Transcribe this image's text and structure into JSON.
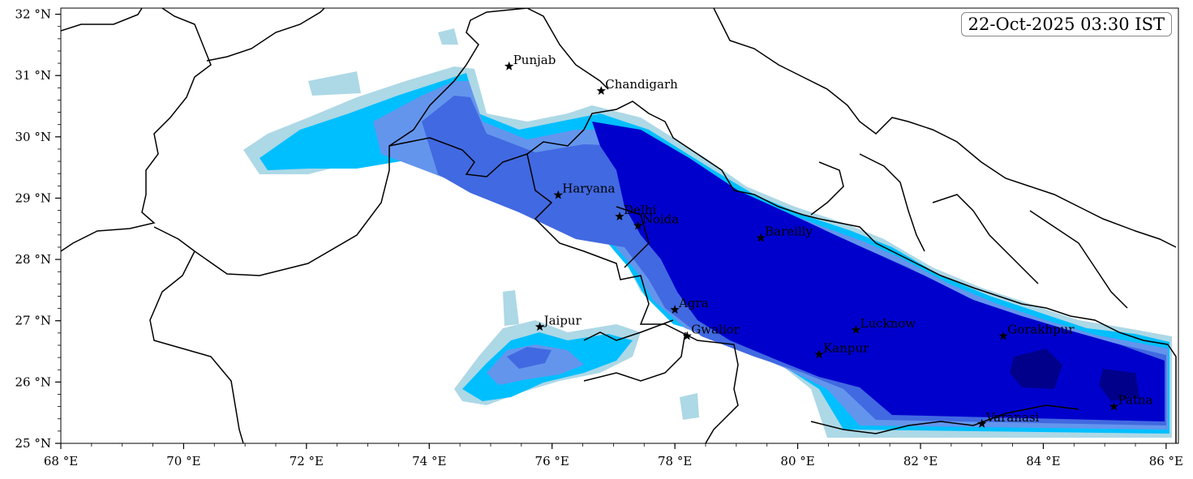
{
  "timestamp": "22-Oct-2025 03:30 IST",
  "map": {
    "lon_range": [
      68,
      86.2
    ],
    "lat_range": [
      25,
      32.1
    ],
    "x_ticks": [
      {
        "value": 68,
        "label": "68 °E"
      },
      {
        "value": 70,
        "label": "70 °E"
      },
      {
        "value": 72,
        "label": "72 °E"
      },
      {
        "value": 74,
        "label": "74 °E"
      },
      {
        "value": 76,
        "label": "76 °E"
      },
      {
        "value": 78,
        "label": "78 °E"
      },
      {
        "value": 80,
        "label": "80 °E"
      },
      {
        "value": 82,
        "label": "82 °E"
      },
      {
        "value": 84,
        "label": "84 °E"
      },
      {
        "value": 86,
        "label": "86 °E"
      }
    ],
    "y_ticks": [
      {
        "value": 25,
        "label": "25 °N"
      },
      {
        "value": 26,
        "label": "26 °N"
      },
      {
        "value": 27,
        "label": "27 °N"
      },
      {
        "value": 28,
        "label": "28 °N"
      },
      {
        "value": 29,
        "label": "29 °N"
      },
      {
        "value": 30,
        "label": "30 °N"
      },
      {
        "value": 31,
        "label": "31 °N"
      },
      {
        "value": 32,
        "label": "32 °N"
      }
    ],
    "cities": [
      {
        "name": "Punjab",
        "lon": 75.3,
        "lat": 31.15
      },
      {
        "name": "Chandigarh",
        "lon": 76.8,
        "lat": 30.75
      },
      {
        "name": "Haryana",
        "lon": 76.1,
        "lat": 29.05
      },
      {
        "name": "Delhi",
        "lon": 77.1,
        "lat": 28.7
      },
      {
        "name": "Noida",
        "lon": 77.4,
        "lat": 28.55
      },
      {
        "name": "Bareilly",
        "lon": 79.4,
        "lat": 28.35
      },
      {
        "name": "Jaipur",
        "lon": 75.8,
        "lat": 26.9
      },
      {
        "name": "Agra",
        "lon": 78.0,
        "lat": 27.18
      },
      {
        "name": "Gwalior",
        "lon": 78.2,
        "lat": 26.75
      },
      {
        "name": "Lucknow",
        "lon": 80.95,
        "lat": 26.85
      },
      {
        "name": "Kanpur",
        "lon": 80.35,
        "lat": 26.45
      },
      {
        "name": "Gorakhpur",
        "lon": 83.35,
        "lat": 26.75
      },
      {
        "name": "Varanasi",
        "lon": 83.0,
        "lat": 25.32
      },
      {
        "name": "Patna",
        "lon": 85.15,
        "lat": 25.6
      }
    ],
    "shading_colors": [
      "#add8e6",
      "#00bfff",
      "#6495ed",
      "#4169e1",
      "#0000cd",
      "#00008b"
    ]
  }
}
